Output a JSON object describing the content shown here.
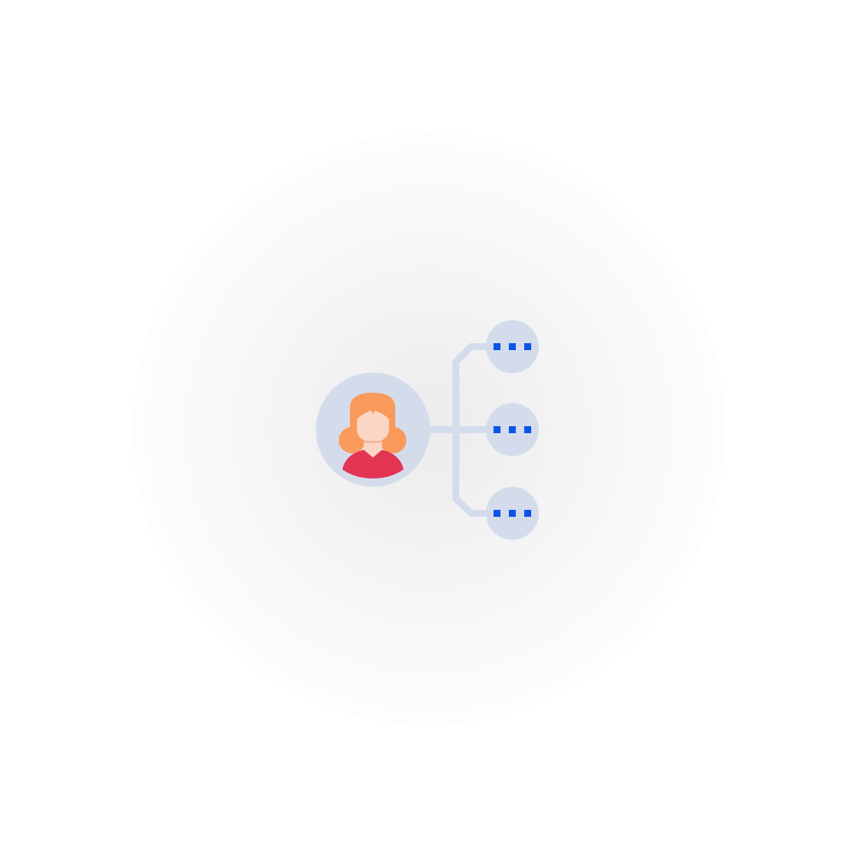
{
  "diagram": {
    "type": "person-to-multiple-connections",
    "central_node": {
      "icon": "woman-avatar-icon"
    },
    "branches": [
      {
        "icon": "ellipsis-icon"
      },
      {
        "icon": "ellipsis-icon"
      },
      {
        "icon": "ellipsis-icon"
      }
    ]
  },
  "colors": {
    "node_fill": "#D4DCEC",
    "connector": "#D4DCEC",
    "ellipsis_dots": "#0B55E6",
    "hair": "#FA9A5A",
    "skin": "#FCD5C4",
    "neck_shadow": "#F1B9A2",
    "shirt": "#E33453"
  }
}
